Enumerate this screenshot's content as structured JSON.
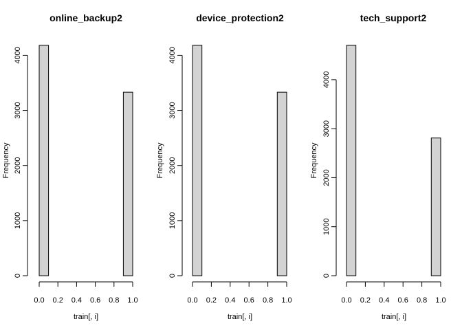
{
  "chart_data": [
    {
      "type": "bar",
      "title": "online_backup2",
      "xlabel": "train[, i]",
      "ylabel": "Frequency",
      "bins": [
        [
          0.0,
          0.1
        ],
        [
          0.1,
          0.2
        ],
        [
          0.2,
          0.3
        ],
        [
          0.3,
          0.4
        ],
        [
          0.4,
          0.5
        ],
        [
          0.5,
          0.6
        ],
        [
          0.6,
          0.7
        ],
        [
          0.7,
          0.8
        ],
        [
          0.8,
          0.9
        ],
        [
          0.9,
          1.0
        ]
      ],
      "values": [
        4180,
        0,
        0,
        0,
        0,
        0,
        0,
        0,
        0,
        3330
      ],
      "xlim": [
        0,
        1
      ],
      "ylim": [
        0,
        4180
      ],
      "xticks": [
        "0.0",
        "0.2",
        "0.4",
        "0.6",
        "0.8",
        "1.0"
      ],
      "yticks": [
        "0",
        "1000",
        "2000",
        "3000",
        "4000"
      ],
      "grid": false
    },
    {
      "type": "bar",
      "title": "device_protection2",
      "xlabel": "train[, i]",
      "ylabel": "Frequency",
      "bins": [
        [
          0.0,
          0.1
        ],
        [
          0.1,
          0.2
        ],
        [
          0.2,
          0.3
        ],
        [
          0.3,
          0.4
        ],
        [
          0.4,
          0.5
        ],
        [
          0.5,
          0.6
        ],
        [
          0.6,
          0.7
        ],
        [
          0.7,
          0.8
        ],
        [
          0.8,
          0.9
        ],
        [
          0.9,
          1.0
        ]
      ],
      "values": [
        4180,
        0,
        0,
        0,
        0,
        0,
        0,
        0,
        0,
        3330
      ],
      "xlim": [
        0,
        1
      ],
      "ylim": [
        0,
        4180
      ],
      "xticks": [
        "0.0",
        "0.2",
        "0.4",
        "0.6",
        "0.8",
        "1.0"
      ],
      "yticks": [
        "0",
        "1000",
        "2000",
        "3000",
        "4000"
      ],
      "grid": false
    },
    {
      "type": "bar",
      "title": "tech_support2",
      "xlabel": "train[, i]",
      "ylabel": "Frequency",
      "bins": [
        [
          0.0,
          0.1
        ],
        [
          0.1,
          0.2
        ],
        [
          0.2,
          0.3
        ],
        [
          0.3,
          0.4
        ],
        [
          0.4,
          0.5
        ],
        [
          0.5,
          0.6
        ],
        [
          0.6,
          0.7
        ],
        [
          0.7,
          0.8
        ],
        [
          0.8,
          0.9
        ],
        [
          0.9,
          1.0
        ]
      ],
      "values": [
        4700,
        0,
        0,
        0,
        0,
        0,
        0,
        0,
        0,
        2810
      ],
      "xlim": [
        0,
        1
      ],
      "ylim": [
        0,
        4700
      ],
      "xticks": [
        "0.0",
        "0.2",
        "0.4",
        "0.6",
        "0.8",
        "1.0"
      ],
      "yticks": [
        "0",
        "1000",
        "2000",
        "3000",
        "4000"
      ],
      "grid": false
    }
  ],
  "colors": {
    "bar_fill": "#d3d3d3",
    "bar_stroke": "#000000"
  }
}
